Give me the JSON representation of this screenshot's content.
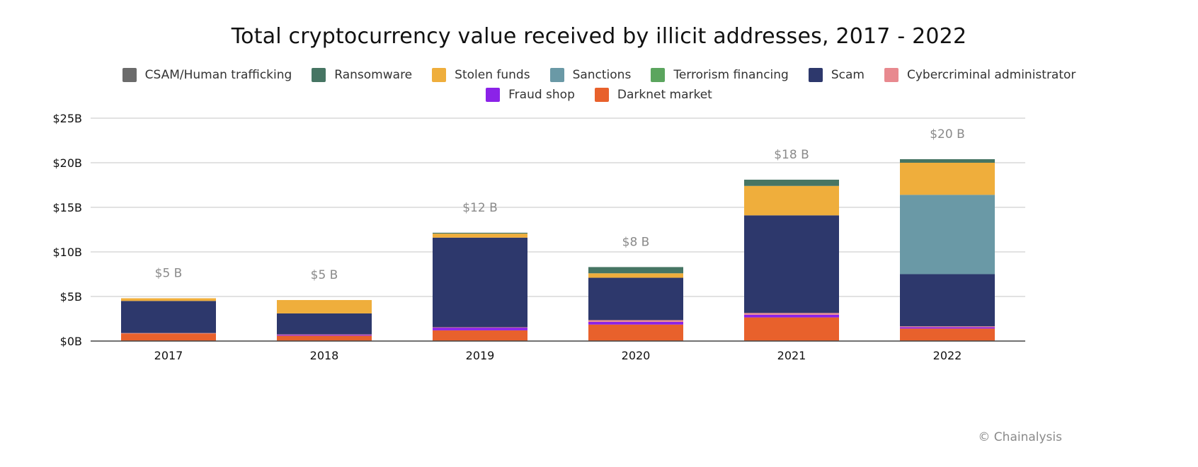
{
  "chart_data": {
    "type": "bar",
    "stacked": true,
    "title": "Total cryptocurrency value received by illicit addresses, 2017 - 2022",
    "xlabel": "",
    "ylabel": "",
    "categories": [
      "2017",
      "2018",
      "2019",
      "2020",
      "2021",
      "2022"
    ],
    "ylim": [
      0,
      25
    ],
    "yticks": [
      0,
      5,
      10,
      15,
      20,
      25
    ],
    "ytick_labels": [
      "$0B",
      "$5B",
      "$10B",
      "$15B",
      "$20B",
      "$25B"
    ],
    "grid": true,
    "legend_position": "top-center",
    "total_labels": [
      "$5 B",
      "$5 B",
      "$12 B",
      "$8 B",
      "$18 B",
      "$20 B"
    ],
    "series": [
      {
        "name": "Darknet market",
        "color": "#E8612C",
        "values": [
          0.85,
          0.6,
          1.2,
          1.85,
          2.65,
          1.4
        ]
      },
      {
        "name": "Fraud shop",
        "color": "#8B22E8",
        "values": [
          0.0,
          0.1,
          0.3,
          0.3,
          0.3,
          0.15
        ]
      },
      {
        "name": "Cybercriminal administrator",
        "color": "#E8898F",
        "values": [
          0.05,
          0.05,
          0.05,
          0.2,
          0.2,
          0.1
        ]
      },
      {
        "name": "Scam",
        "color": "#2D386C",
        "values": [
          3.6,
          2.35,
          10.05,
          4.75,
          10.95,
          5.85
        ]
      },
      {
        "name": "Terrorism financing",
        "color": "#5BA55E",
        "values": [
          0.0,
          0.0,
          0.0,
          0.0,
          0.0,
          0.0
        ]
      },
      {
        "name": "Sanctions",
        "color": "#6A99A6",
        "values": [
          0.0,
          0.0,
          0.0,
          0.0,
          0.0,
          8.9
        ]
      },
      {
        "name": "Stolen funds",
        "color": "#EFAE3C",
        "values": [
          0.3,
          1.5,
          0.45,
          0.5,
          3.3,
          3.6
        ]
      },
      {
        "name": "Ransomware",
        "color": "#467563",
        "values": [
          0.0,
          0.0,
          0.1,
          0.7,
          0.7,
          0.4
        ]
      },
      {
        "name": "CSAM/Human trafficking",
        "color": "#6B6B6B",
        "values": [
          0.0,
          0.0,
          0.0,
          0.0,
          0.0,
          0.0
        ]
      }
    ]
  },
  "legend": {
    "row1": [
      {
        "label": "CSAM/Human trafficking",
        "color": "#6B6B6B"
      },
      {
        "label": "Ransomware",
        "color": "#467563"
      },
      {
        "label": "Stolen funds",
        "color": "#EFAE3C"
      },
      {
        "label": "Sanctions",
        "color": "#6A99A6"
      },
      {
        "label": "Terrorism financing",
        "color": "#5BA55E"
      },
      {
        "label": "Scam",
        "color": "#2D386C"
      },
      {
        "label": "Cybercriminal administrator",
        "color": "#E8898F"
      }
    ],
    "row2": [
      {
        "label": "Fraud shop",
        "color": "#8B22E8"
      },
      {
        "label": "Darknet market",
        "color": "#E8612C"
      }
    ]
  },
  "footer": {
    "credit": "© Chainalysis"
  }
}
